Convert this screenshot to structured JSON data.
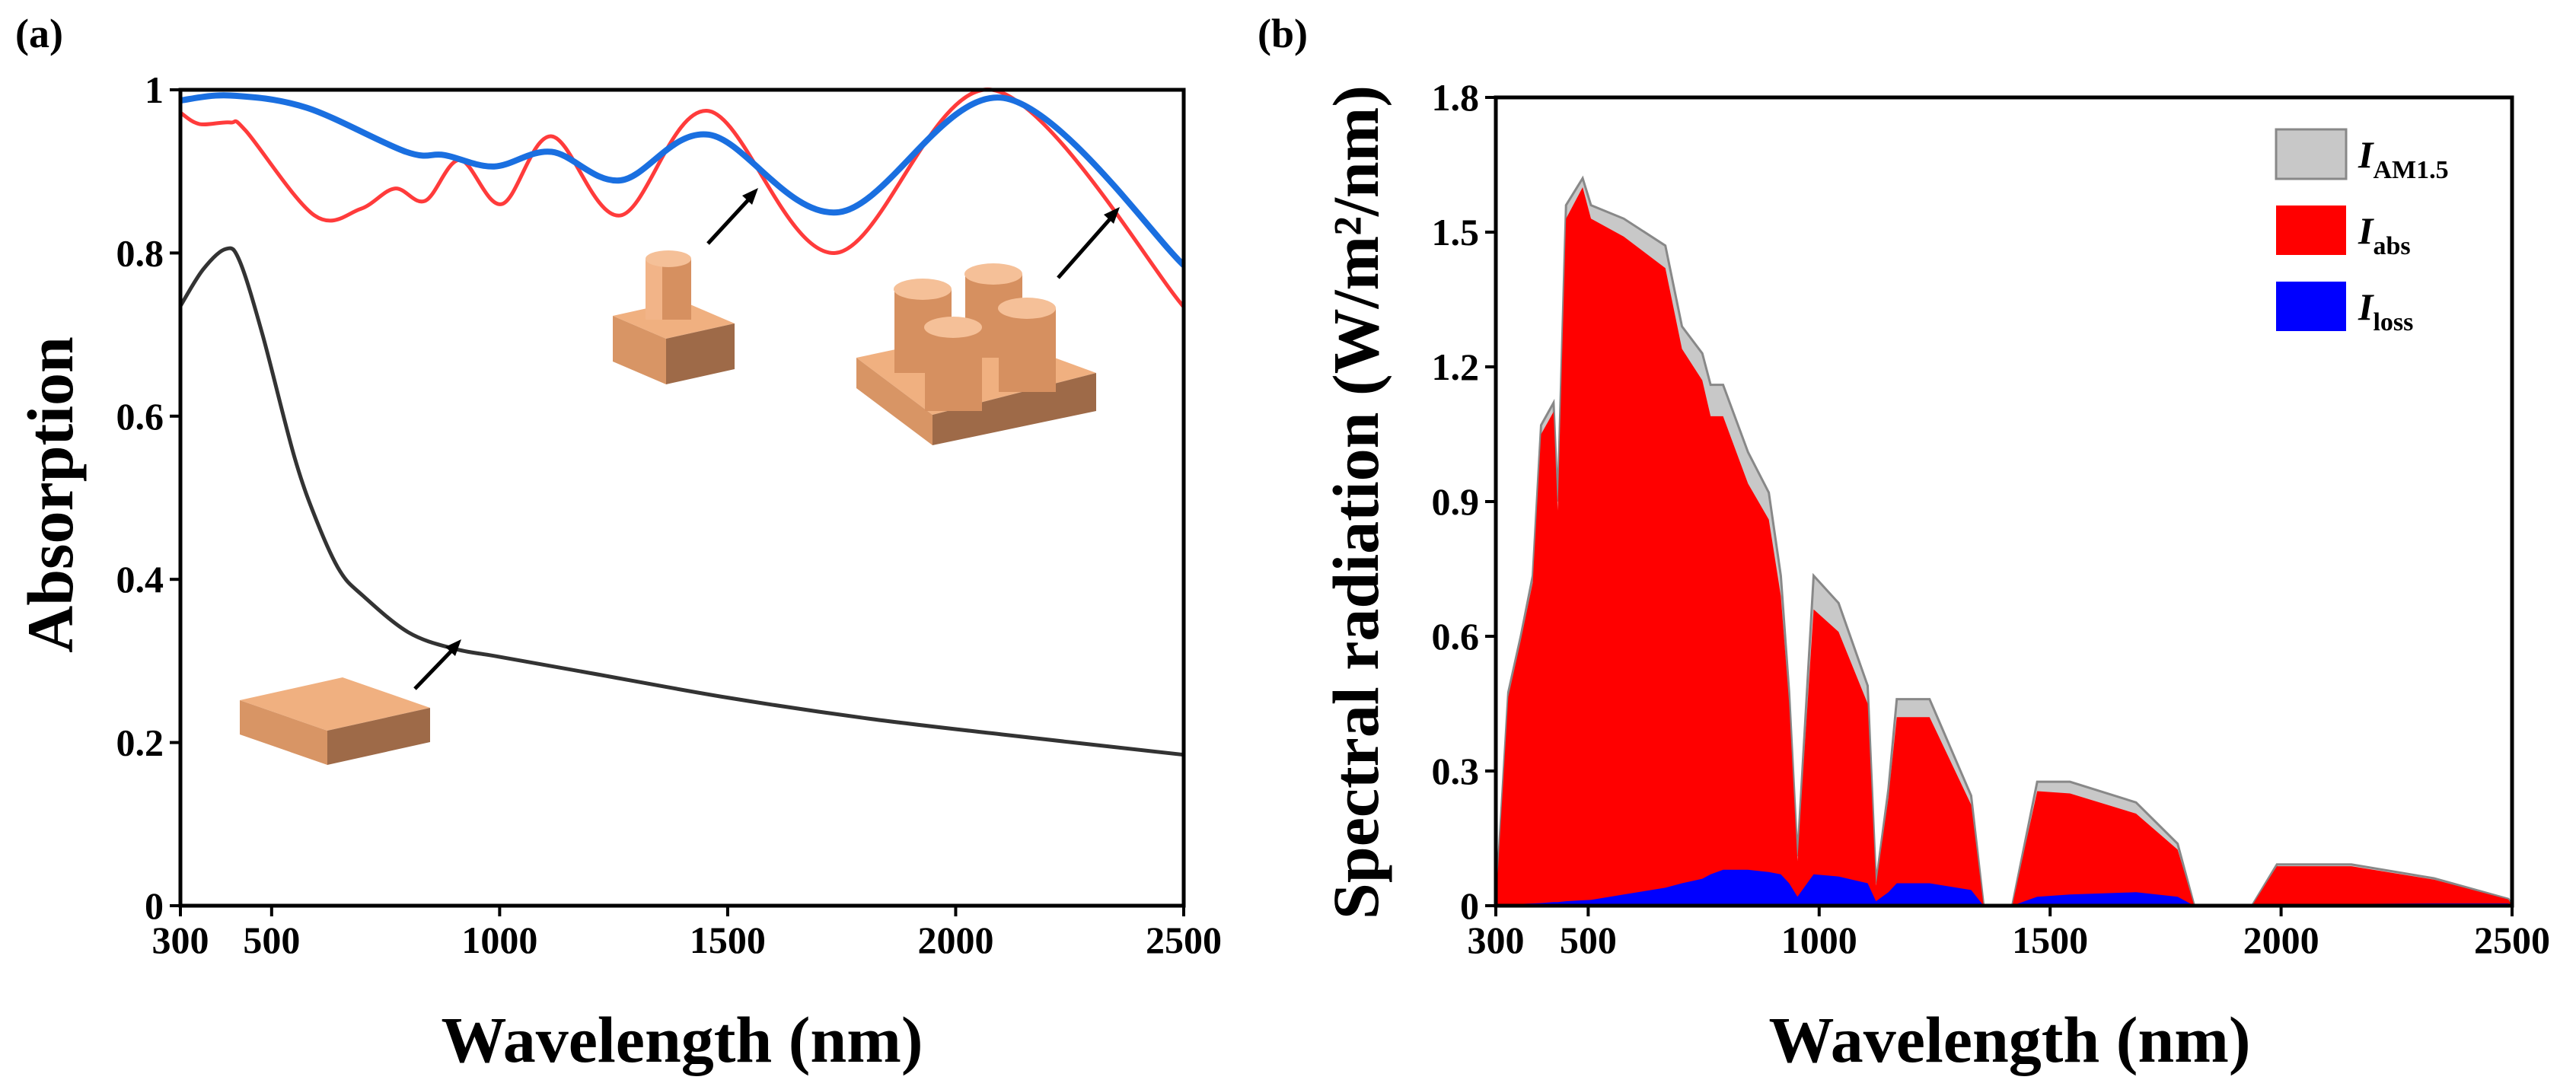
{
  "chart_data": [
    {
      "type": "line",
      "panel_label": "(a)",
      "xlabel": "Wavelength (nm)",
      "ylabel": "Absorption",
      "xlim": [
        300,
        2500
      ],
      "ylim": [
        0,
        1
      ],
      "xticks": [
        300,
        500,
        1000,
        1500,
        2000,
        2500
      ],
      "yticks": [
        0,
        0.2,
        0.4,
        0.6,
        0.8,
        1
      ],
      "ytick_labels": [
        "0",
        "0.2",
        "0.4",
        "0.6",
        "0.8",
        "1"
      ],
      "series": [
        {
          "name": "flat film",
          "color": "#333333",
          "x": [
            300,
            350,
            400,
            430,
            480,
            550,
            600,
            650,
            700,
            800,
            900,
            1000,
            1200,
            1500,
            1800,
            2100,
            2500
          ],
          "y": [
            0.735,
            0.78,
            0.805,
            0.79,
            0.7,
            0.55,
            0.47,
            0.41,
            0.38,
            0.335,
            0.315,
            0.305,
            0.285,
            0.255,
            0.23,
            0.21,
            0.185
          ]
        },
        {
          "name": "single pillar",
          "color": "#ff3b3b",
          "x": [
            300,
            342,
            409,
            443,
            594,
            695,
            770,
            837,
            913,
            1005,
            1114,
            1265,
            1459,
            1736,
            2080,
            2500
          ],
          "y": [
            0.972,
            0.958,
            0.96,
            0.95,
            0.846,
            0.854,
            0.879,
            0.864,
            0.914,
            0.86,
            0.943,
            0.846,
            0.974,
            0.8,
            1.0,
            0.734
          ]
        },
        {
          "name": "four hollow pillars",
          "color": "#1a6fe0",
          "x": [
            300,
            409,
            577,
            795,
            879,
            988,
            1114,
            1265,
            1459,
            1744,
            2105,
            2500
          ],
          "y": [
            0.987,
            0.993,
            0.978,
            0.924,
            0.92,
            0.906,
            0.924,
            0.889,
            0.945,
            0.85,
            0.99,
            0.785
          ]
        }
      ]
    },
    {
      "type": "area",
      "panel_label": "(b)",
      "xlabel": "Wavelength (nm)",
      "ylabel": "Spectral radiation (W/m²/nm)",
      "xlim": [
        300,
        2500
      ],
      "ylim": [
        0,
        1.8
      ],
      "xticks": [
        300,
        500,
        1000,
        1500,
        2000,
        2500
      ],
      "yticks": [
        0,
        0.3,
        0.6,
        0.9,
        1.2,
        1.5,
        1.8
      ],
      "ytick_labels": [
        "0",
        "0.3",
        "0.6",
        "0.9",
        "1.2",
        "1.5",
        "1.8"
      ],
      "legend_position": "top-right",
      "x": [
        300,
        327,
        354,
        380,
        398,
        425,
        434,
        452,
        488,
        506,
        577,
        667,
        703,
        747,
        765,
        792,
        846,
        891,
        917,
        935,
        953,
        988,
        1042,
        1105,
        1123,
        1150,
        1168,
        1239,
        1329,
        1356,
        1418,
        1472,
        1543,
        1686,
        1776,
        1812,
        1937,
        1991,
        2152,
        2331,
        2492,
        2500
      ],
      "series": [
        {
          "name": "AM1.5",
          "legend_main": "I",
          "legend_sub": "AM1.5",
          "color": "#c8c8c8",
          "values": [
            0,
            0.475,
            0.6,
            0.735,
            1.07,
            1.12,
            0.9,
            1.56,
            1.62,
            1.56,
            1.53,
            1.47,
            1.29,
            1.23,
            1.16,
            1.16,
            1.01,
            0.92,
            0.735,
            0.475,
            0.11,
            0.735,
            0.674,
            0.49,
            0.05,
            0.26,
            0.46,
            0.46,
            0.245,
            0,
            0,
            0.276,
            0.276,
            0.23,
            0.138,
            0,
            0,
            0.092,
            0.092,
            0.061,
            0.015,
            0
          ]
        },
        {
          "name": "abs",
          "legend_main": "I",
          "legend_sub": "abs",
          "color": "#ff0000",
          "values": [
            0,
            0.465,
            0.59,
            0.72,
            1.05,
            1.1,
            0.88,
            1.53,
            1.6,
            1.53,
            1.49,
            1.42,
            1.24,
            1.17,
            1.09,
            1.09,
            0.94,
            0.86,
            0.69,
            0.45,
            0.1,
            0.66,
            0.61,
            0.45,
            0.045,
            0.24,
            0.42,
            0.42,
            0.225,
            0,
            0,
            0.255,
            0.25,
            0.205,
            0.125,
            0,
            0,
            0.088,
            0.088,
            0.058,
            0.014,
            0
          ]
        },
        {
          "name": "loss",
          "legend_main": "I",
          "legend_sub": "loss",
          "color": "#0000ff",
          "values": [
            0,
            0.003,
            0.004,
            0.005,
            0.006,
            0.008,
            0.008,
            0.01,
            0.012,
            0.013,
            0.025,
            0.04,
            0.05,
            0.06,
            0.07,
            0.08,
            0.08,
            0.075,
            0.07,
            0.05,
            0.02,
            0.07,
            0.065,
            0.05,
            0.01,
            0.03,
            0.05,
            0.05,
            0.035,
            0,
            0,
            0.02,
            0.025,
            0.03,
            0.02,
            0,
            0,
            0.003,
            0.004,
            0.005,
            0.005,
            0
          ]
        }
      ]
    }
  ]
}
